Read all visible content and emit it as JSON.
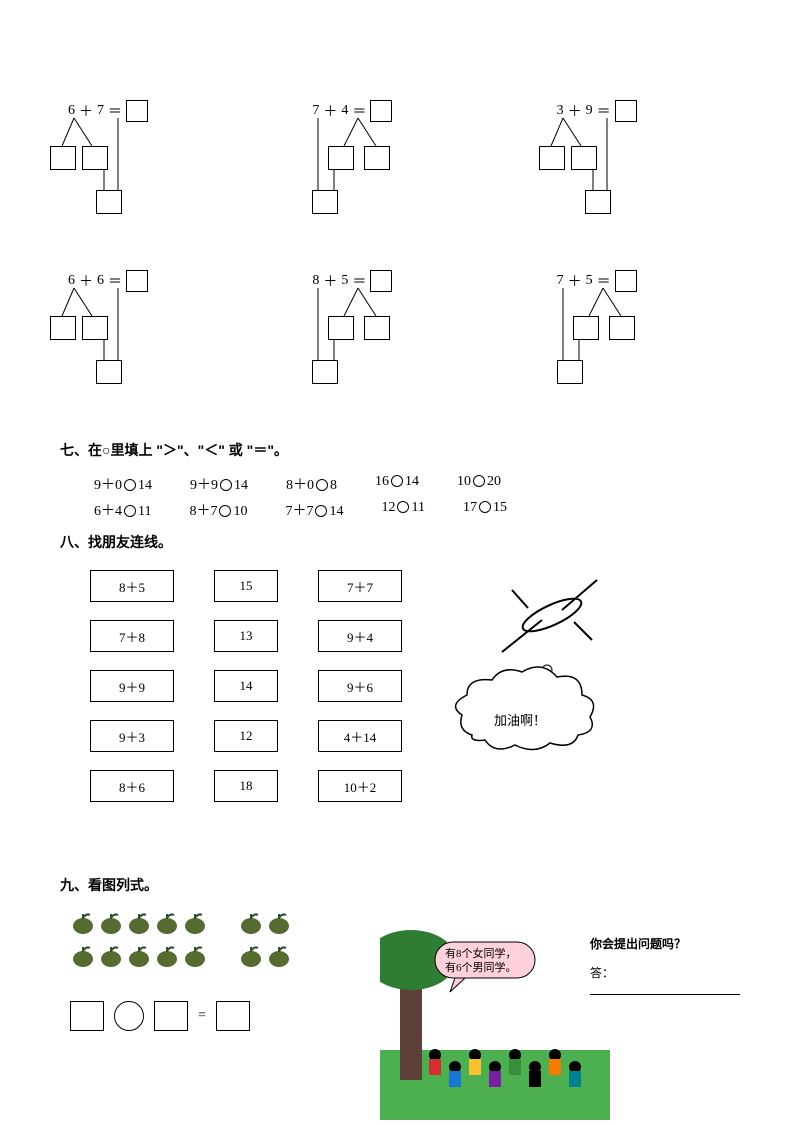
{
  "trees": {
    "row1": [
      {
        "a": "6",
        "op": "＋",
        "b": "7",
        "eq": "＝"
      },
      {
        "a": "7",
        "op": "＋",
        "b": "4",
        "eq": "＝"
      },
      {
        "a": "3",
        "op": "＋",
        "b": "9",
        "eq": "＝"
      }
    ],
    "row2": [
      {
        "a": "6",
        "op": "＋",
        "b": "6",
        "eq": "＝"
      },
      {
        "a": "8",
        "op": "＋",
        "b": "5",
        "eq": "＝"
      },
      {
        "a": "7",
        "op": "＋",
        "b": "5",
        "eq": "＝"
      }
    ]
  },
  "section7": {
    "title": "七、在○里填上 \"＞\"、\"＜\" 或 \"＝\"。",
    "rows": [
      [
        "9＋0○14",
        "9＋9○14",
        "8＋0○8",
        "16○14",
        "10○20"
      ],
      [
        "6＋4○11",
        "8＋7○10",
        "7＋7○14",
        "12○11",
        "17○15"
      ]
    ]
  },
  "section8": {
    "title": "八、找朋友连线。",
    "left": [
      "8＋5",
      "7＋8",
      "9＋9",
      "9＋3",
      "8＋6"
    ],
    "mid": [
      "15",
      "13",
      "14",
      "12",
      "18"
    ],
    "right": [
      "7＋7",
      "9＋4",
      "9＋6",
      "4＋14",
      "10＋2"
    ],
    "cheer": "加油啊！",
    "cheer_bg": "#ffffff",
    "plane_stroke": "#000000"
  },
  "section9": {
    "title": "九、看图列式。",
    "apples": {
      "group1_rows": [
        5,
        5
      ],
      "group2_rows": [
        2,
        2
      ],
      "fill": "#556b2f",
      "leaf": "#2f4f2f"
    },
    "eq_symbol": "=",
    "speech": [
      "有8个女同学，",
      "有6个男同学。"
    ],
    "speech_bg": "#ffd1dc",
    "prompt": "你会提出问题吗？",
    "answer_label": "答：",
    "scene": {
      "grass": "#4caf50",
      "tree_trunk": "#5d4037",
      "tree_leaves": "#2e7d32",
      "kids_colors": [
        "#d32f2f",
        "#1976d2",
        "#fbc02d",
        "#7b1fa2",
        "#388e3c",
        "#000000",
        "#f57c00",
        "#00838f"
      ]
    }
  }
}
